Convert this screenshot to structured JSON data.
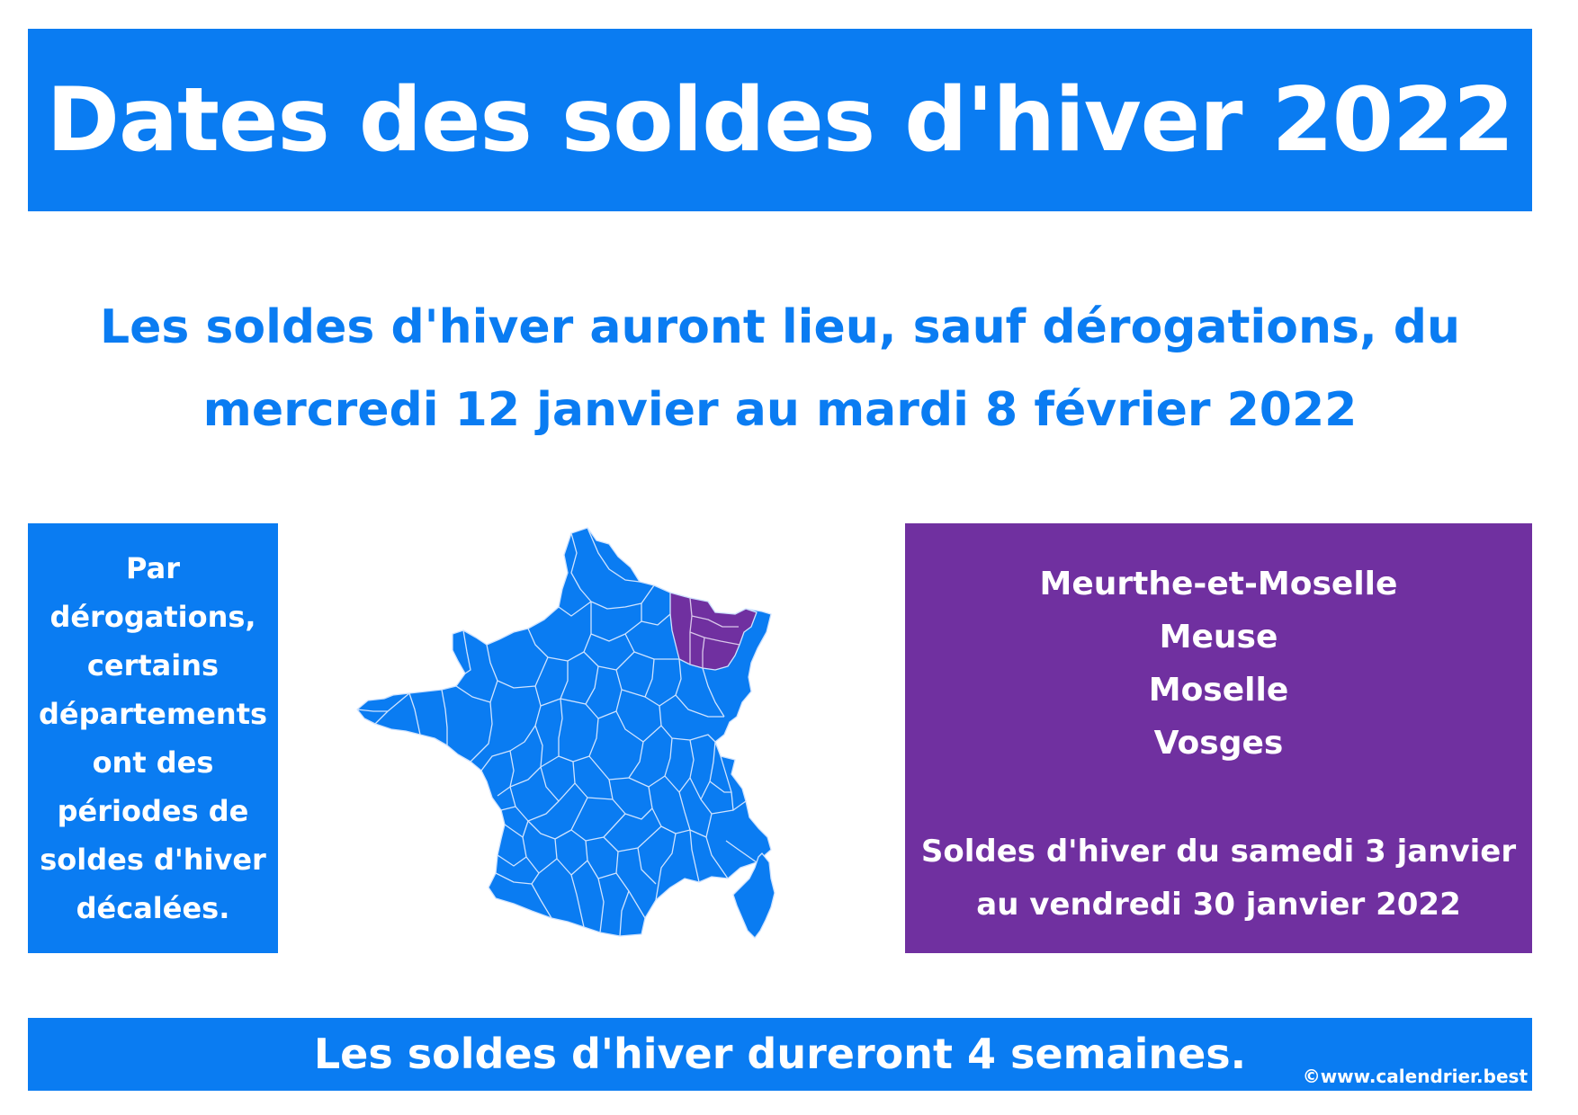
{
  "colors": {
    "blue": "#0a7cf2",
    "purple": "#7030a0",
    "white": "#ffffff",
    "department_borders": "#cfe3ff"
  },
  "header": {
    "title": "Dates des soldes d'hiver 2022"
  },
  "intro": {
    "line1": "Les soldes d'hiver auront lieu, sauf dérogations, du",
    "line2": "mercredi 12 janvier au mardi 8 février 2022"
  },
  "derogation_note": {
    "lines": [
      "Par",
      "dérogations,",
      "certains",
      "départements",
      "ont des",
      "périodes de",
      "soldes d'hiver",
      "décalées."
    ]
  },
  "map": {
    "name": "France métropolitaine",
    "default_fill": "#0a7cf2",
    "highlight_fill": "#7030a0",
    "highlighted_departments": [
      "Meurthe-et-Moselle",
      "Meuse",
      "Moselle",
      "Vosges"
    ]
  },
  "exception_box": {
    "departments": [
      "Meurthe-et-Moselle",
      "Meuse",
      "Moselle",
      "Vosges"
    ],
    "period_line1": "Soldes d'hiver du samedi 3 janvier",
    "period_line2": "au vendredi 30 janvier 2022"
  },
  "footer": {
    "text": "Les soldes d'hiver dureront 4 semaines.",
    "credit": "©www.calendrier.best"
  }
}
